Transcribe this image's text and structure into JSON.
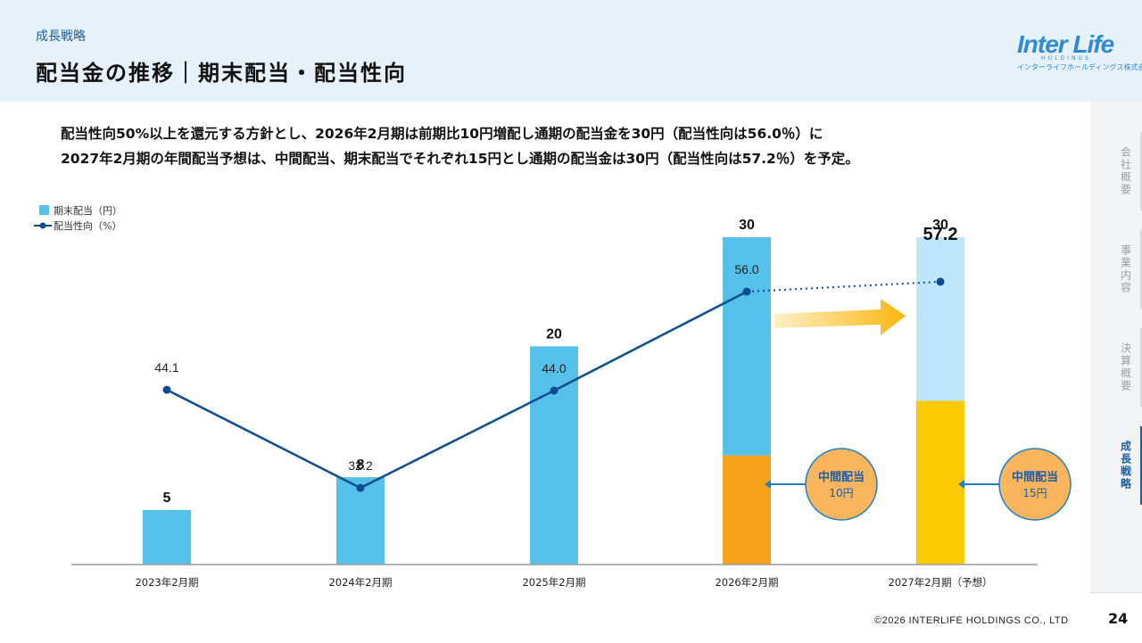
{
  "header": {
    "section_label": "成長戦略",
    "title": "配当金の推移｜期末配当・配当性向",
    "logo": {
      "main": "Inter Life",
      "sub": "HOLDINGS",
      "jp": "インターライフホールディングス株式会社"
    }
  },
  "sidebar": {
    "items": [
      {
        "label": "会社概要",
        "active": false
      },
      {
        "label": "事業内容",
        "active": false
      },
      {
        "label": "決算概要",
        "active": false
      },
      {
        "label": "成長戦略",
        "active": true
      }
    ]
  },
  "lead": {
    "line1": "配当性向50%以上を還元する方針とし、2026年2月期は前期比10円増配し通期の配当金を30円（配当性向は56.0％）に",
    "line2": "2027年2月期の年間配当予想は、中間配当、期末配当でそれぞれ15円とし通期の配当金は30円（配当性向は57.2％）を予定。"
  },
  "chart_data": {
    "type": "bar",
    "categories": [
      "2023年2月期",
      "2024年2月期",
      "2025年2月期",
      "2026年2月期",
      "2027年2月期（予想）"
    ],
    "legend": {
      "bar": "期末配当（円）",
      "line": "配当性向（%）"
    },
    "series": [
      {
        "name": "期末配当（円）",
        "values": [
          5,
          8,
          20,
          20,
          15
        ]
      },
      {
        "name": "中間配当",
        "values": [
          0,
          0,
          0,
          10,
          15
        ]
      },
      {
        "name": "配当性向（%）",
        "type": "line",
        "values": [
          44.1,
          32.2,
          44.0,
          56.0,
          57.2
        ]
      }
    ],
    "totals": [
      5,
      8,
      20,
      30,
      30
    ],
    "ratio_labels": [
      "44.1",
      "32.2",
      "44.0",
      "56.0",
      "57.2"
    ],
    "interim_callouts": [
      {
        "category_index": 3,
        "line1": "中間配当",
        "line2": "10円"
      },
      {
        "category_index": 4,
        "line1": "中間配当",
        "line2": "15円"
      }
    ],
    "ylim": [
      0,
      30
    ],
    "ratio_ylim": [
      0,
      80
    ],
    "colors": {
      "year_end": "#55c1ea",
      "year_end_forecast": "#bde6fb",
      "interim": "#f7a21b",
      "interim_forecast": "#fcc905",
      "line": "#0b4d92",
      "callout_fill": "#fbb55c",
      "axis": "#9a9a9a"
    }
  },
  "footer": {
    "copyright": "©2026 INTERLIFE HOLDINGS CO., LTD",
    "page": "24"
  }
}
